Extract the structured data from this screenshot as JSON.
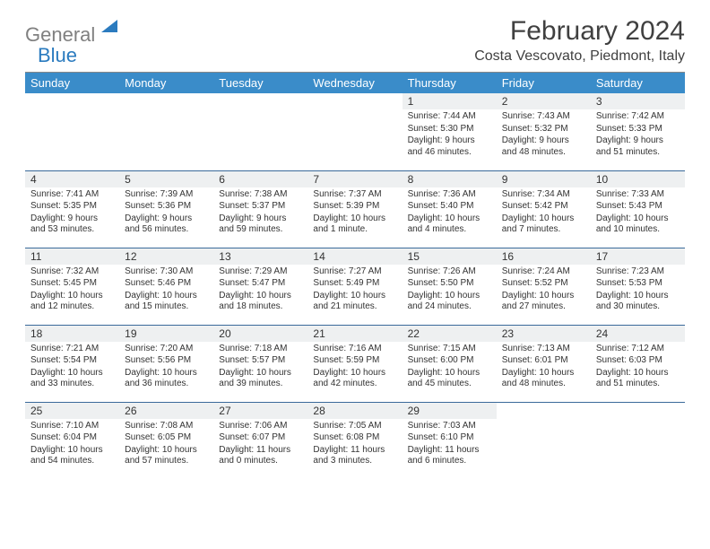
{
  "brand": {
    "part1": "General",
    "part2": "Blue"
  },
  "title": "February 2024",
  "location": "Costa Vescovato, Piedmont, Italy",
  "colors": {
    "header_bg": "#3a8cc9",
    "header_text": "#ffffff",
    "daynum_bg": "#eef0f1",
    "border": "#3a6a9a",
    "brand_gray": "#808080",
    "brand_blue": "#2b7bbf",
    "text": "#333333"
  },
  "dayHeaders": [
    "Sunday",
    "Monday",
    "Tuesday",
    "Wednesday",
    "Thursday",
    "Friday",
    "Saturday"
  ],
  "weeks": [
    [
      null,
      null,
      null,
      null,
      {
        "num": "1",
        "sunrise": "Sunrise: 7:44 AM",
        "sunset": "Sunset: 5:30 PM",
        "daylight": "Daylight: 9 hours and 46 minutes."
      },
      {
        "num": "2",
        "sunrise": "Sunrise: 7:43 AM",
        "sunset": "Sunset: 5:32 PM",
        "daylight": "Daylight: 9 hours and 48 minutes."
      },
      {
        "num": "3",
        "sunrise": "Sunrise: 7:42 AM",
        "sunset": "Sunset: 5:33 PM",
        "daylight": "Daylight: 9 hours and 51 minutes."
      }
    ],
    [
      {
        "num": "4",
        "sunrise": "Sunrise: 7:41 AM",
        "sunset": "Sunset: 5:35 PM",
        "daylight": "Daylight: 9 hours and 53 minutes."
      },
      {
        "num": "5",
        "sunrise": "Sunrise: 7:39 AM",
        "sunset": "Sunset: 5:36 PM",
        "daylight": "Daylight: 9 hours and 56 minutes."
      },
      {
        "num": "6",
        "sunrise": "Sunrise: 7:38 AM",
        "sunset": "Sunset: 5:37 PM",
        "daylight": "Daylight: 9 hours and 59 minutes."
      },
      {
        "num": "7",
        "sunrise": "Sunrise: 7:37 AM",
        "sunset": "Sunset: 5:39 PM",
        "daylight": "Daylight: 10 hours and 1 minute."
      },
      {
        "num": "8",
        "sunrise": "Sunrise: 7:36 AM",
        "sunset": "Sunset: 5:40 PM",
        "daylight": "Daylight: 10 hours and 4 minutes."
      },
      {
        "num": "9",
        "sunrise": "Sunrise: 7:34 AM",
        "sunset": "Sunset: 5:42 PM",
        "daylight": "Daylight: 10 hours and 7 minutes."
      },
      {
        "num": "10",
        "sunrise": "Sunrise: 7:33 AM",
        "sunset": "Sunset: 5:43 PM",
        "daylight": "Daylight: 10 hours and 10 minutes."
      }
    ],
    [
      {
        "num": "11",
        "sunrise": "Sunrise: 7:32 AM",
        "sunset": "Sunset: 5:45 PM",
        "daylight": "Daylight: 10 hours and 12 minutes."
      },
      {
        "num": "12",
        "sunrise": "Sunrise: 7:30 AM",
        "sunset": "Sunset: 5:46 PM",
        "daylight": "Daylight: 10 hours and 15 minutes."
      },
      {
        "num": "13",
        "sunrise": "Sunrise: 7:29 AM",
        "sunset": "Sunset: 5:47 PM",
        "daylight": "Daylight: 10 hours and 18 minutes."
      },
      {
        "num": "14",
        "sunrise": "Sunrise: 7:27 AM",
        "sunset": "Sunset: 5:49 PM",
        "daylight": "Daylight: 10 hours and 21 minutes."
      },
      {
        "num": "15",
        "sunrise": "Sunrise: 7:26 AM",
        "sunset": "Sunset: 5:50 PM",
        "daylight": "Daylight: 10 hours and 24 minutes."
      },
      {
        "num": "16",
        "sunrise": "Sunrise: 7:24 AM",
        "sunset": "Sunset: 5:52 PM",
        "daylight": "Daylight: 10 hours and 27 minutes."
      },
      {
        "num": "17",
        "sunrise": "Sunrise: 7:23 AM",
        "sunset": "Sunset: 5:53 PM",
        "daylight": "Daylight: 10 hours and 30 minutes."
      }
    ],
    [
      {
        "num": "18",
        "sunrise": "Sunrise: 7:21 AM",
        "sunset": "Sunset: 5:54 PM",
        "daylight": "Daylight: 10 hours and 33 minutes."
      },
      {
        "num": "19",
        "sunrise": "Sunrise: 7:20 AM",
        "sunset": "Sunset: 5:56 PM",
        "daylight": "Daylight: 10 hours and 36 minutes."
      },
      {
        "num": "20",
        "sunrise": "Sunrise: 7:18 AM",
        "sunset": "Sunset: 5:57 PM",
        "daylight": "Daylight: 10 hours and 39 minutes."
      },
      {
        "num": "21",
        "sunrise": "Sunrise: 7:16 AM",
        "sunset": "Sunset: 5:59 PM",
        "daylight": "Daylight: 10 hours and 42 minutes."
      },
      {
        "num": "22",
        "sunrise": "Sunrise: 7:15 AM",
        "sunset": "Sunset: 6:00 PM",
        "daylight": "Daylight: 10 hours and 45 minutes."
      },
      {
        "num": "23",
        "sunrise": "Sunrise: 7:13 AM",
        "sunset": "Sunset: 6:01 PM",
        "daylight": "Daylight: 10 hours and 48 minutes."
      },
      {
        "num": "24",
        "sunrise": "Sunrise: 7:12 AM",
        "sunset": "Sunset: 6:03 PM",
        "daylight": "Daylight: 10 hours and 51 minutes."
      }
    ],
    [
      {
        "num": "25",
        "sunrise": "Sunrise: 7:10 AM",
        "sunset": "Sunset: 6:04 PM",
        "daylight": "Daylight: 10 hours and 54 minutes."
      },
      {
        "num": "26",
        "sunrise": "Sunrise: 7:08 AM",
        "sunset": "Sunset: 6:05 PM",
        "daylight": "Daylight: 10 hours and 57 minutes."
      },
      {
        "num": "27",
        "sunrise": "Sunrise: 7:06 AM",
        "sunset": "Sunset: 6:07 PM",
        "daylight": "Daylight: 11 hours and 0 minutes."
      },
      {
        "num": "28",
        "sunrise": "Sunrise: 7:05 AM",
        "sunset": "Sunset: 6:08 PM",
        "daylight": "Daylight: 11 hours and 3 minutes."
      },
      {
        "num": "29",
        "sunrise": "Sunrise: 7:03 AM",
        "sunset": "Sunset: 6:10 PM",
        "daylight": "Daylight: 11 hours and 6 minutes."
      },
      null,
      null
    ]
  ]
}
